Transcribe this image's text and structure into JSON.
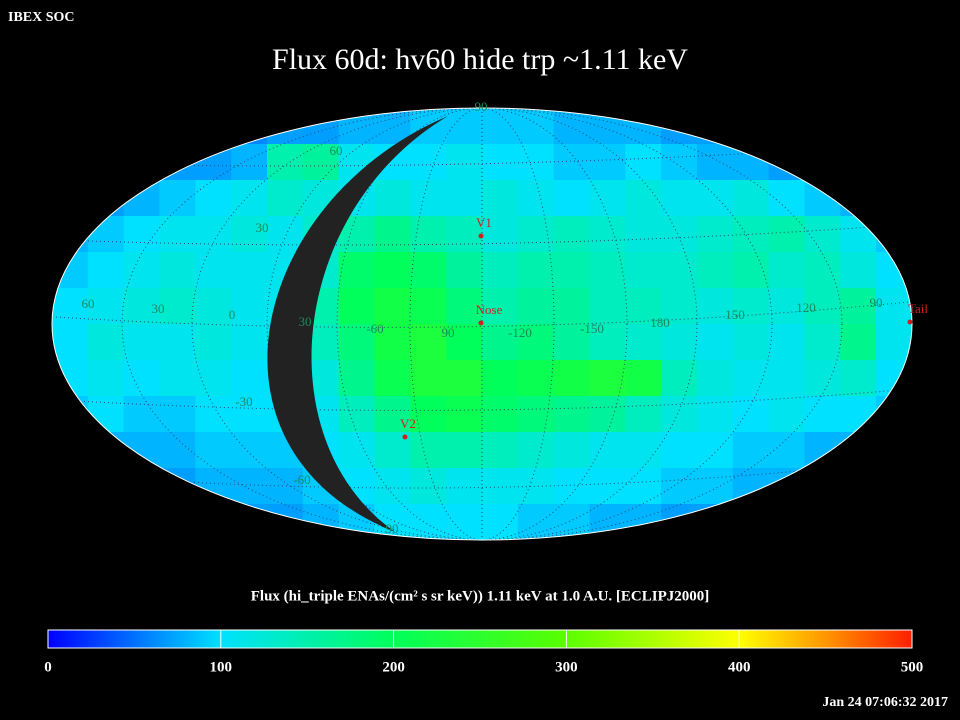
{
  "header": {
    "source": "IBEX SOC",
    "title": "Flux   60d: hv60 hide trp ~1.11 keV",
    "timestamp": "Jan 24 07:06:32 2017"
  },
  "map": {
    "grid_labels": [
      "90",
      "60",
      "30",
      "-30",
      "-60",
      "90",
      "60",
      "30",
      "0",
      "30",
      "-60",
      "90",
      "-120",
      "-150",
      "180",
      "150",
      "120",
      "90"
    ],
    "markers": [
      {
        "label": "V1"
      },
      {
        "label": "Nose"
      },
      {
        "label": "V2"
      },
      {
        "label": "Tail"
      }
    ],
    "marker_color": "#d02020",
    "flux": [
      [
        60,
        60,
        60,
        60,
        60,
        60,
        70,
        70,
        80,
        80,
        90,
        90,
        90,
        90,
        80,
        80,
        80,
        70,
        70,
        60,
        60,
        60,
        60,
        60
      ],
      [
        60,
        60,
        60,
        70,
        70,
        80,
        150,
        160,
        110,
        100,
        100,
        110,
        100,
        100,
        90,
        90,
        100,
        90,
        80,
        80,
        70,
        70,
        60,
        60
      ],
      [
        70,
        70,
        80,
        90,
        100,
        110,
        130,
        120,
        110,
        120,
        110,
        110,
        120,
        110,
        100,
        110,
        120,
        110,
        110,
        120,
        100,
        90,
        80,
        70
      ],
      [
        80,
        90,
        100,
        110,
        110,
        120,
        110,
        130,
        150,
        170,
        150,
        140,
        120,
        130,
        140,
        130,
        120,
        120,
        130,
        140,
        150,
        130,
        110,
        90
      ],
      [
        90,
        100,
        110,
        120,
        110,
        110,
        110,
        130,
        190,
        200,
        190,
        160,
        140,
        150,
        150,
        140,
        130,
        130,
        140,
        150,
        130,
        140,
        120,
        100
      ],
      [
        100,
        110,
        120,
        130,
        120,
        110,
        110,
        150,
        200,
        220,
        210,
        180,
        150,
        160,
        160,
        140,
        140,
        130,
        120,
        130,
        120,
        140,
        160,
        110
      ],
      [
        100,
        120,
        110,
        110,
        120,
        110,
        110,
        140,
        180,
        220,
        230,
        200,
        170,
        180,
        160,
        140,
        130,
        120,
        110,
        120,
        110,
        130,
        170,
        110
      ],
      [
        100,
        110,
        100,
        110,
        110,
        100,
        100,
        120,
        170,
        210,
        230,
        230,
        200,
        210,
        220,
        230,
        220,
        140,
        120,
        110,
        110,
        120,
        130,
        100
      ],
      [
        90,
        100,
        90,
        90,
        100,
        100,
        100,
        110,
        140,
        170,
        200,
        210,
        190,
        180,
        170,
        160,
        140,
        120,
        110,
        100,
        110,
        100,
        100,
        90
      ],
      [
        80,
        80,
        80,
        80,
        90,
        90,
        90,
        100,
        110,
        130,
        150,
        150,
        140,
        130,
        120,
        110,
        110,
        100,
        100,
        90,
        90,
        80,
        80,
        80
      ],
      [
        70,
        70,
        70,
        70,
        80,
        80,
        80,
        90,
        100,
        110,
        120,
        110,
        110,
        110,
        100,
        100,
        100,
        90,
        90,
        80,
        80,
        70,
        70,
        70
      ],
      [
        60,
        60,
        60,
        60,
        60,
        70,
        70,
        80,
        90,
        100,
        100,
        100,
        100,
        90,
        90,
        80,
        80,
        70,
        70,
        60,
        60,
        60,
        60,
        60
      ]
    ]
  },
  "colorbar": {
    "label": "Flux (hi_triple ENAs/(cm² s sr keV))  1.11 keV at 1.0 A.U. [ECLIPJ2000]",
    "clim": [
      0,
      500
    ],
    "ticks": [
      0,
      100,
      200,
      300,
      400,
      500
    ]
  }
}
